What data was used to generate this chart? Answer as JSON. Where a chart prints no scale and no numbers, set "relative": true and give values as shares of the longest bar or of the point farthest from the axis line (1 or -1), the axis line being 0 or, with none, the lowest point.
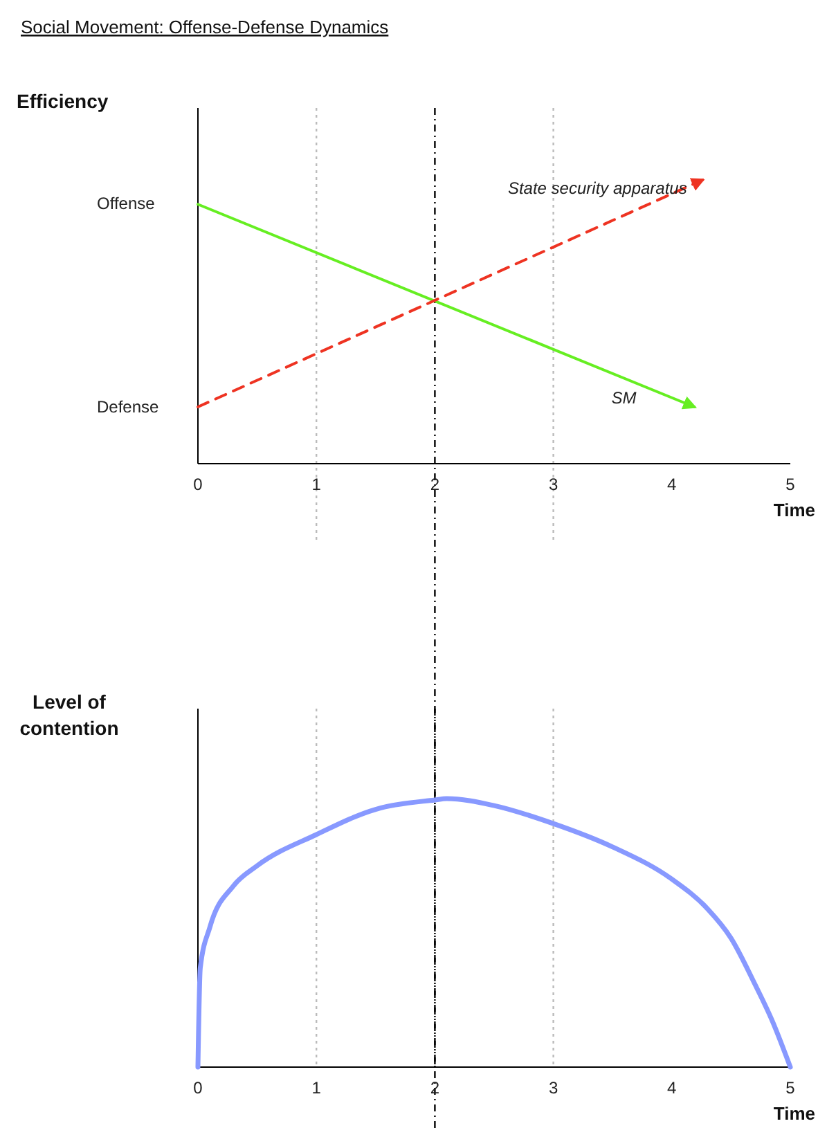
{
  "chart_data": [
    {
      "type": "line",
      "relative": true,
      "title": "Social Movement: Offense-Defense Dynamics",
      "ylabel": "Efficiency",
      "xlabel": "Time",
      "xlim": [
        0,
        5
      ],
      "xticks": [
        0,
        1,
        2,
        3,
        4,
        5
      ],
      "annotations": [
        "Offense",
        "Defense"
      ],
      "series": [
        {
          "name": "SM",
          "color": "#66ee22",
          "line_style": "solid",
          "x": [
            0,
            4.19
          ],
          "values": [
            0.914,
            0.2
          ]
        },
        {
          "name": "State security apparatus",
          "color": "#ee3322",
          "line_style": "dashed",
          "x": [
            0,
            4.26
          ],
          "values": [
            0.2,
            1
          ]
        }
      ],
      "ref_lines": [
        {
          "axis": "x",
          "value": 1,
          "color": "#bbbbbb",
          "line_style": "dotted"
        },
        {
          "axis": "x",
          "value": 2,
          "color": "#000000",
          "line_style": "dashdot"
        },
        {
          "axis": "x",
          "value": 3,
          "color": "#bbbbbb",
          "line_style": "dotted"
        }
      ]
    },
    {
      "type": "line",
      "relative": true,
      "ylabel": "Level of contention",
      "xlabel": "Time",
      "xlim": [
        0,
        5
      ],
      "xticks": [
        0,
        1,
        2,
        3,
        4,
        5
      ],
      "series": [
        {
          "color": "#8899ff",
          "line_style": "solid",
          "x": [
            0,
            0.02,
            0.1,
            0.3,
            0.5,
            1,
            1.5,
            2,
            2.1,
            2.5,
            3,
            3.5,
            4,
            4.3,
            4.5,
            4.7,
            4.85,
            5
          ],
          "values": [
            0,
            0.37,
            0.52,
            0.675,
            0.75,
            0.866,
            0.96,
            0.995,
            1,
            0.974,
            0.907,
            0.82,
            0.7,
            0.59,
            0.48,
            0.31,
            0.17,
            0
          ]
        }
      ],
      "ref_lines": [
        {
          "axis": "x",
          "value": 1,
          "color": "#bbbbbb",
          "line_style": "dotted"
        },
        {
          "axis": "x",
          "value": 2,
          "color": "#000000",
          "line_style": "dashdot"
        },
        {
          "axis": "x",
          "value": 3,
          "color": "#bbbbbb",
          "line_style": "dotted"
        }
      ]
    }
  ]
}
